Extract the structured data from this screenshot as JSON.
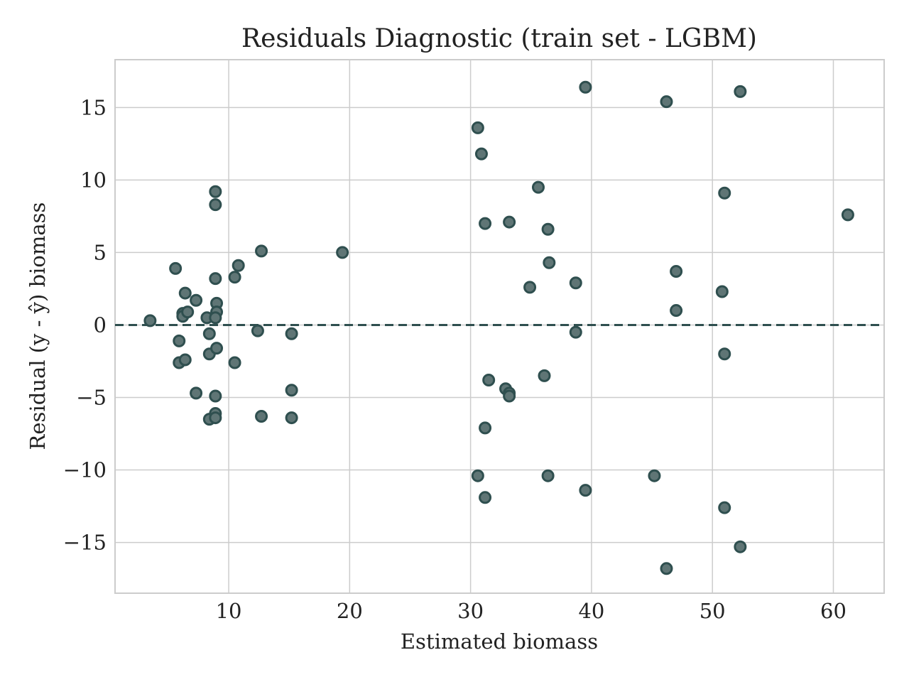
{
  "chart_data": {
    "type": "scatter",
    "title": "Residuals Diagnostic (train set - LGBM)",
    "xlabel": "Estimated biomass",
    "ylabel": "Residual (y - ŷ) biomass",
    "xlim": [
      0.6,
      64.2
    ],
    "ylim": [
      -18.5,
      18.3
    ],
    "xticks": [
      10,
      20,
      30,
      40,
      50,
      60
    ],
    "xtick_labels": [
      "10",
      "20",
      "30",
      "40",
      "50",
      "60"
    ],
    "yticks": [
      15,
      10,
      5,
      0,
      -5,
      -10,
      -15
    ],
    "ytick_labels": [
      "15",
      "10",
      "5",
      "0",
      "−5",
      "−10",
      "−15"
    ],
    "grid": true,
    "reference_line": {
      "y": 0,
      "style": "dashed",
      "color": "#2f4f4f"
    },
    "marker_color": "#2f4f4f",
    "marker_fill": "#5f7575",
    "points": [
      {
        "x": 3.5,
        "y": 0.3
      },
      {
        "x": 5.6,
        "y": 3.9
      },
      {
        "x": 5.9,
        "y": -1.1
      },
      {
        "x": 5.9,
        "y": -2.6
      },
      {
        "x": 6.2,
        "y": 0.8
      },
      {
        "x": 6.2,
        "y": 0.6
      },
      {
        "x": 6.4,
        "y": 2.2
      },
      {
        "x": 6.4,
        "y": -2.4
      },
      {
        "x": 6.6,
        "y": 0.9
      },
      {
        "x": 7.3,
        "y": 1.7
      },
      {
        "x": 7.3,
        "y": -4.7
      },
      {
        "x": 8.2,
        "y": 0.5
      },
      {
        "x": 8.4,
        "y": -0.6
      },
      {
        "x": 8.4,
        "y": -2.0
      },
      {
        "x": 8.4,
        "y": -6.5
      },
      {
        "x": 8.9,
        "y": 9.2
      },
      {
        "x": 8.9,
        "y": 8.3
      },
      {
        "x": 8.9,
        "y": 3.2
      },
      {
        "x": 9.0,
        "y": 1.5
      },
      {
        "x": 9.0,
        "y": 0.9
      },
      {
        "x": 8.9,
        "y": 0.5
      },
      {
        "x": 9.0,
        "y": -1.6
      },
      {
        "x": 8.9,
        "y": -4.9
      },
      {
        "x": 8.9,
        "y": -6.1
      },
      {
        "x": 8.9,
        "y": -6.4
      },
      {
        "x": 10.5,
        "y": 3.3
      },
      {
        "x": 10.8,
        "y": 4.1
      },
      {
        "x": 10.5,
        "y": -2.6
      },
      {
        "x": 12.4,
        "y": -0.4
      },
      {
        "x": 12.7,
        "y": 5.1
      },
      {
        "x": 12.7,
        "y": -6.3
      },
      {
        "x": 15.2,
        "y": -0.6
      },
      {
        "x": 15.2,
        "y": -4.5
      },
      {
        "x": 15.2,
        "y": -6.4
      },
      {
        "x": 19.4,
        "y": 5.0
      },
      {
        "x": 30.6,
        "y": 13.6
      },
      {
        "x": 30.6,
        "y": -10.4
      },
      {
        "x": 30.9,
        "y": 11.8
      },
      {
        "x": 31.2,
        "y": 7.0
      },
      {
        "x": 31.2,
        "y": -7.1
      },
      {
        "x": 31.2,
        "y": -11.9
      },
      {
        "x": 31.5,
        "y": -3.8
      },
      {
        "x": 32.9,
        "y": -4.4
      },
      {
        "x": 33.2,
        "y": 7.1
      },
      {
        "x": 33.2,
        "y": -4.7
      },
      {
        "x": 33.2,
        "y": -4.9
      },
      {
        "x": 34.9,
        "y": 2.6
      },
      {
        "x": 35.6,
        "y": 9.5
      },
      {
        "x": 36.1,
        "y": -3.5
      },
      {
        "x": 36.4,
        "y": 6.6
      },
      {
        "x": 36.5,
        "y": 4.3
      },
      {
        "x": 36.4,
        "y": -10.4
      },
      {
        "x": 38.7,
        "y": 2.9
      },
      {
        "x": 38.7,
        "y": -0.5
      },
      {
        "x": 39.5,
        "y": 16.4
      },
      {
        "x": 39.5,
        "y": -11.4
      },
      {
        "x": 45.2,
        "y": -10.4
      },
      {
        "x": 46.2,
        "y": 15.4
      },
      {
        "x": 46.2,
        "y": -16.8
      },
      {
        "x": 47.0,
        "y": 3.7
      },
      {
        "x": 47.0,
        "y": 1.0
      },
      {
        "x": 50.8,
        "y": 2.3
      },
      {
        "x": 51.0,
        "y": 9.1
      },
      {
        "x": 51.0,
        "y": -2.0
      },
      {
        "x": 51.0,
        "y": -12.6
      },
      {
        "x": 52.3,
        "y": 16.1
      },
      {
        "x": 52.3,
        "y": -15.3
      },
      {
        "x": 61.2,
        "y": 7.6
      }
    ]
  }
}
